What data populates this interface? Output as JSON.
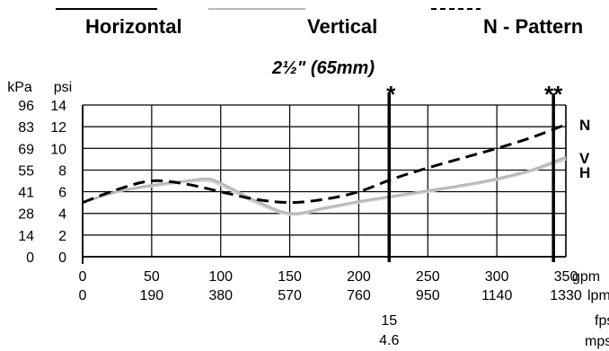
{
  "chart_data": {
    "type": "line",
    "title": "2½\"  (65mm)",
    "legend": [
      "Horizontal",
      "Vertical",
      "N - Pattern"
    ],
    "series_end_labels": [
      "N",
      "V",
      "H"
    ],
    "series": [
      {
        "name": "N - Pattern",
        "style": "dashed",
        "color": "#000000",
        "x": [
          0,
          25,
          50,
          75,
          100,
          125,
          150,
          175,
          200,
          225,
          250,
          275,
          300,
          325,
          350
        ],
        "y": [
          5,
          6.2,
          7.0,
          6.7,
          6.0,
          5.3,
          5.0,
          5.3,
          6.0,
          7.2,
          8.2,
          9.1,
          10.0,
          11.0,
          12.2
        ]
      },
      {
        "name": "Vertical",
        "style": "solid",
        "color": "#b8b8b8",
        "x": [
          0,
          25,
          50,
          75,
          90,
          100,
          125,
          150,
          175,
          200,
          225,
          250,
          275,
          300,
          325,
          350
        ],
        "y": [
          5,
          6.0,
          6.6,
          7.0,
          7.2,
          6.8,
          5.2,
          4.0,
          4.5,
          5.1,
          5.6,
          6.1,
          6.6,
          7.2,
          8.0,
          9.2
        ]
      },
      {
        "name": "Horizontal",
        "style": "solid",
        "color": "#d4d4d4",
        "x": [
          0,
          25,
          50,
          75,
          90,
          100,
          125,
          150,
          175,
          200,
          225,
          250,
          275,
          300,
          325,
          350
        ],
        "y": [
          5,
          6.0,
          6.5,
          6.9,
          7.0,
          6.6,
          5.0,
          3.9,
          4.4,
          5.0,
          5.5,
          6.0,
          6.5,
          7.1,
          7.9,
          9.0
        ]
      }
    ],
    "xlim": [
      0,
      350
    ],
    "ylim": [
      0,
      14
    ],
    "grid": true,
    "x_ticks": [
      0,
      50,
      100,
      150,
      200,
      250,
      300,
      350
    ],
    "y_ticks": [
      0,
      2,
      4,
      6,
      8,
      10,
      12,
      14
    ],
    "x_tick_labels_gpm": [
      "0",
      "50",
      "100",
      "150",
      "200",
      "250",
      "300",
      "350"
    ],
    "x_tick_labels_lpm": [
      "0",
      "190",
      "380",
      "570",
      "760",
      "950",
      "1140",
      "1330"
    ],
    "y_tick_labels_psi": [
      "0",
      "2",
      "4",
      "6",
      "8",
      "10",
      "12",
      "14"
    ],
    "y_tick_labels_kpa": [
      "0",
      "14",
      "28",
      "41",
      "55",
      "69",
      "83",
      "96"
    ],
    "y_unit_labels": [
      "kPa",
      "psi"
    ],
    "x_unit_labels": [
      "gpm",
      "lpm",
      "fps",
      "mps"
    ],
    "markers": [
      {
        "x": 222,
        "label": "*",
        "fps": "15",
        "mps": "4.6"
      },
      {
        "x": 341,
        "label": "**"
      }
    ]
  }
}
